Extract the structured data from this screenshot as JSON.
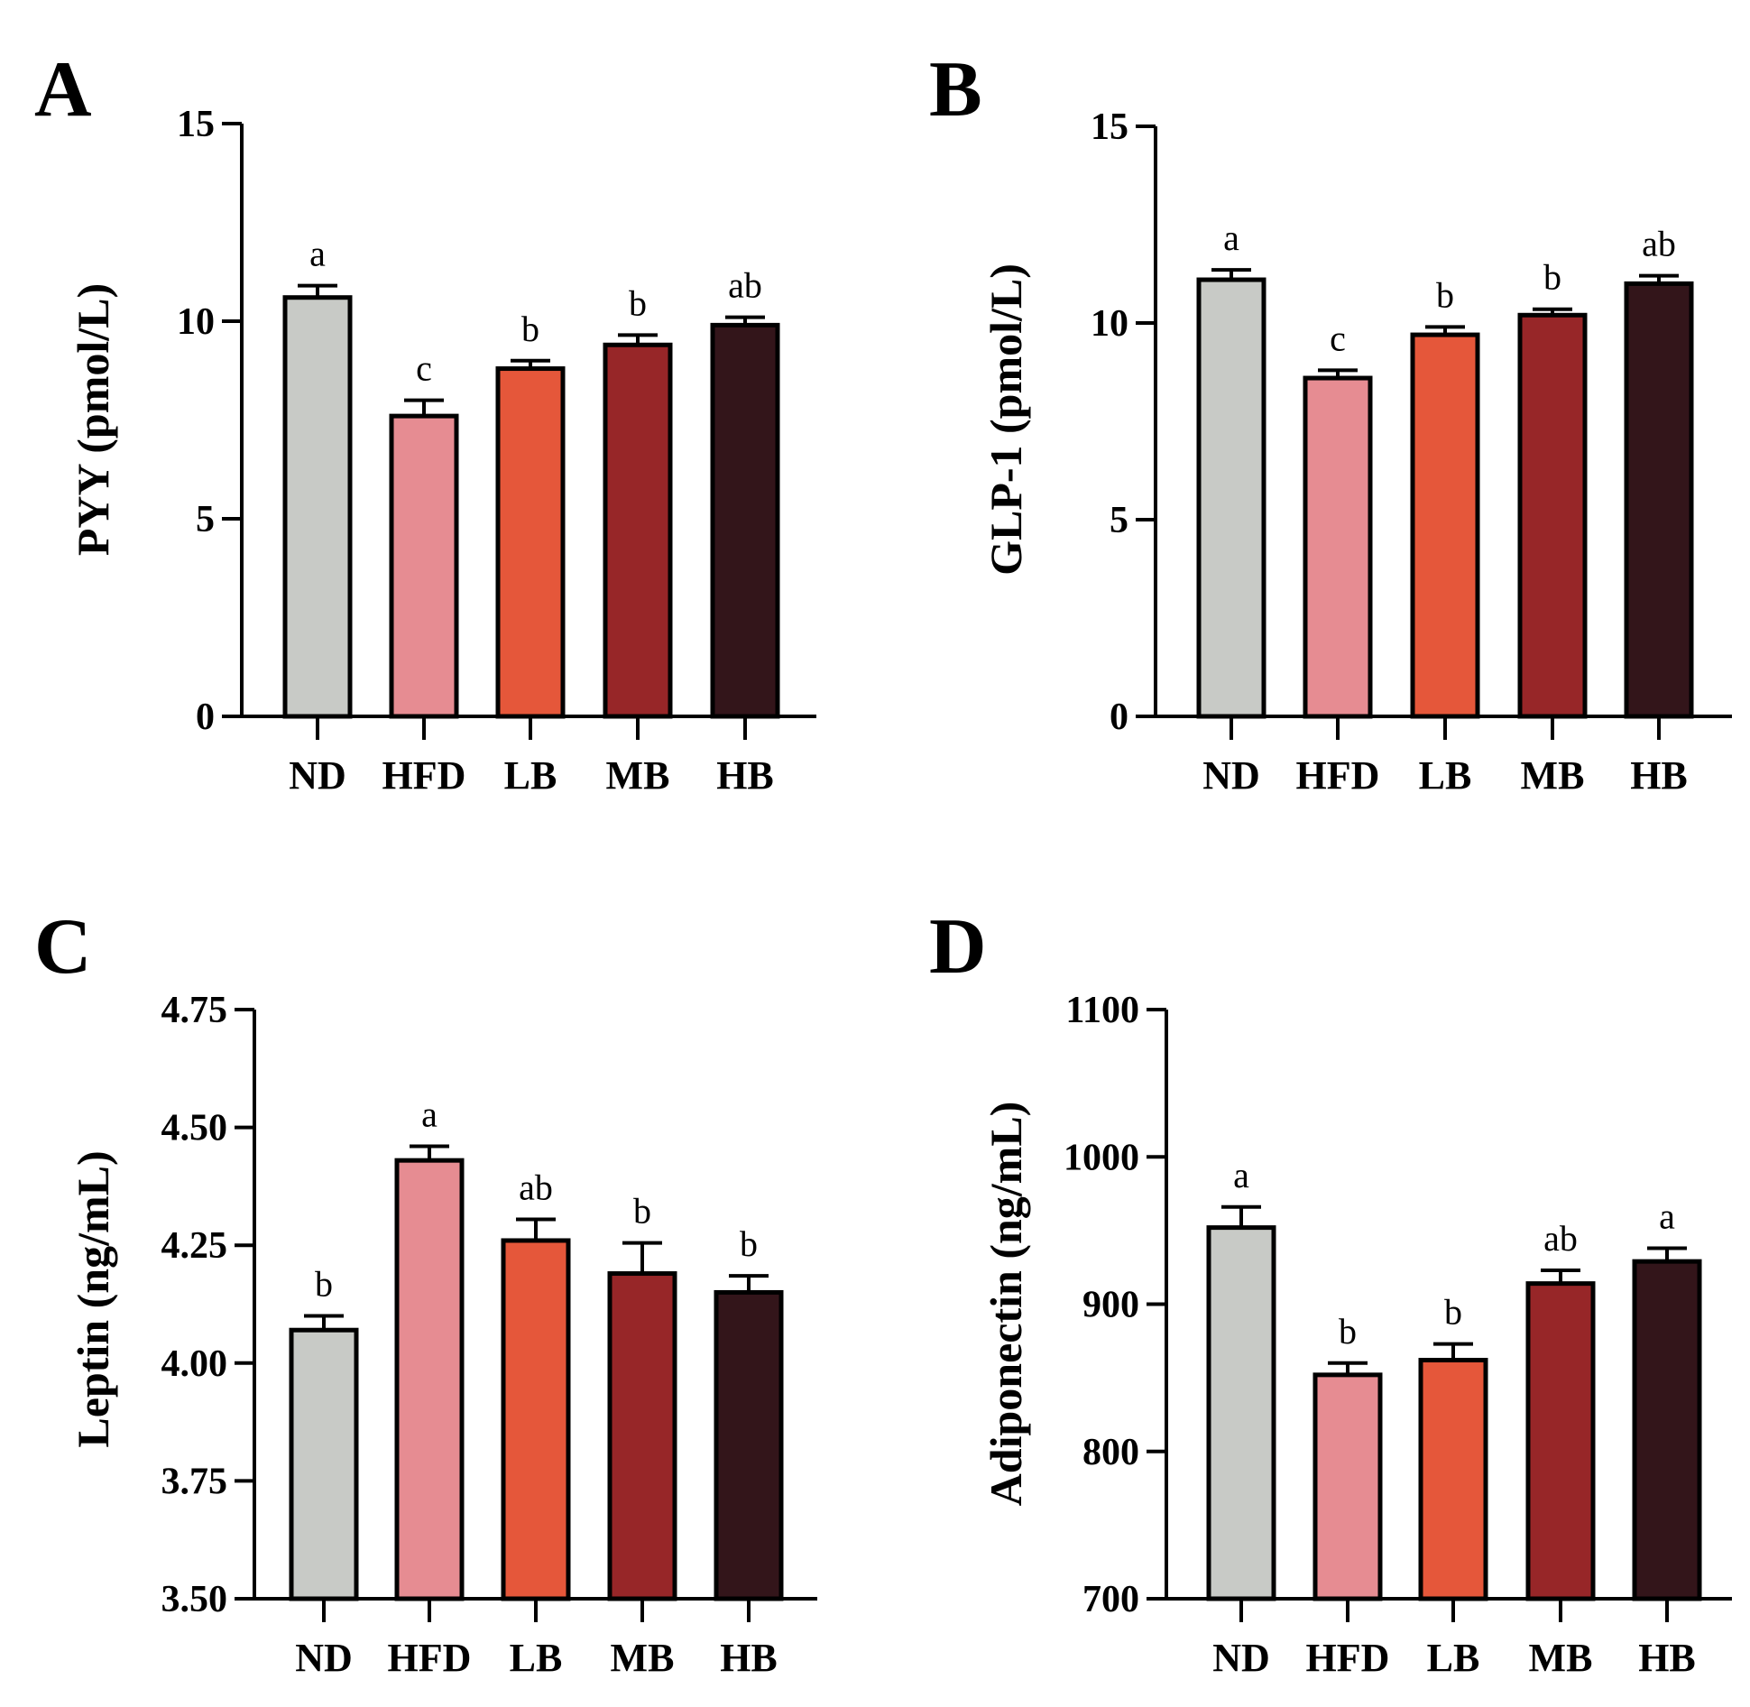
{
  "figure": {
    "colors": {
      "ND": "#c8cac6",
      "HFD": "#e68c92",
      "LB": "#e5573a",
      "MB": "#972628",
      "HB": "#33151a",
      "axis": "#000000"
    }
  },
  "chart_data": [
    {
      "panel": "A",
      "type": "bar",
      "title": "",
      "xlabel": "",
      "ylabel": "PYY (pmol/L)",
      "ylim": [
        0,
        15
      ],
      "yticks": [
        0,
        5,
        10,
        15
      ],
      "ytick_labels": [
        "0",
        "5",
        "10",
        "15"
      ],
      "categories": [
        "ND",
        "HFD",
        "LB",
        "MB",
        "HB"
      ],
      "values": [
        10.6,
        7.6,
        8.8,
        9.4,
        9.9
      ],
      "errors": [
        0.3,
        0.4,
        0.2,
        0.25,
        0.2
      ],
      "significance": [
        "a",
        "c",
        "b",
        "b",
        "ab"
      ]
    },
    {
      "panel": "B",
      "type": "bar",
      "title": "",
      "xlabel": "",
      "ylabel": "GLP-1 (pmol/L)",
      "ylim": [
        0,
        15
      ],
      "yticks": [
        0,
        5,
        10,
        15
      ],
      "ytick_labels": [
        "0",
        "5",
        "10",
        "15"
      ],
      "categories": [
        "ND",
        "HFD",
        "LB",
        "MB",
        "HB"
      ],
      "values": [
        11.1,
        8.6,
        9.7,
        10.2,
        11.0
      ],
      "errors": [
        0.25,
        0.2,
        0.2,
        0.15,
        0.2
      ],
      "significance": [
        "a",
        "c",
        "b",
        "b",
        "ab"
      ]
    },
    {
      "panel": "C",
      "type": "bar",
      "title": "",
      "xlabel": "",
      "ylabel": "Leptin (ng/mL)",
      "ylim": [
        3.5,
        4.75
      ],
      "yticks": [
        3.5,
        3.75,
        4.0,
        4.25,
        4.5,
        4.75
      ],
      "ytick_labels": [
        "3.50",
        "3.75",
        "4.00",
        "4.25",
        "4.50",
        "4.75"
      ],
      "categories": [
        "ND",
        "HFD",
        "LB",
        "MB",
        "HB"
      ],
      "values": [
        4.07,
        4.43,
        4.26,
        4.19,
        4.15
      ],
      "errors": [
        0.03,
        0.03,
        0.045,
        0.065,
        0.035
      ],
      "significance": [
        "b",
        "a",
        "ab",
        "b",
        "b"
      ]
    },
    {
      "panel": "D",
      "type": "bar",
      "title": "",
      "xlabel": "",
      "ylabel": "Adiponectin (ng/mL)",
      "ylim": [
        700,
        1100
      ],
      "yticks": [
        700,
        800,
        900,
        1000,
        1100
      ],
      "ytick_labels": [
        "700",
        "800",
        "900",
        "1000",
        "1100"
      ],
      "categories": [
        "ND",
        "HFD",
        "LB",
        "MB",
        "HB"
      ],
      "values": [
        952,
        852,
        862,
        914,
        929
      ],
      "errors": [
        14,
        8,
        11,
        9,
        9
      ],
      "significance": [
        "a",
        "b",
        "b",
        "ab",
        "a"
      ]
    }
  ]
}
